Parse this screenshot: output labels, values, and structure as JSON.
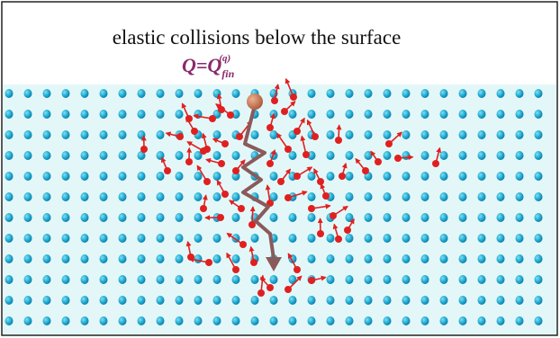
{
  "title": "elastic collisions below the surface",
  "label": {
    "main": "Q=Q",
    "sub": "fin",
    "sup": "(q)"
  }
}
